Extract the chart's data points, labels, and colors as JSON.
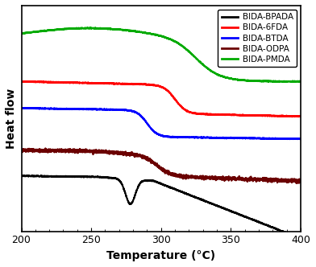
{
  "title": "",
  "xlabel": "Temperature (°C)",
  "ylabel": "Heat flow",
  "xlim": [
    200,
    400
  ],
  "ylim": [
    -0.05,
    1.05
  ],
  "x_ticks": [
    200,
    250,
    300,
    350,
    400
  ],
  "legend_labels": [
    "BIDA-BPADA",
    "BIDA-6FDA",
    "BIDA-BTDA",
    "BIDA-ODPA",
    "BIDA-PMDA"
  ],
  "line_colors": [
    "#000000",
    "#ff0000",
    "#0000ff",
    "#6b0000",
    "#00aa00"
  ],
  "background_color": "#ffffff",
  "noise_scales": [
    0.001,
    0.001,
    0.001,
    0.004,
    0.001
  ]
}
